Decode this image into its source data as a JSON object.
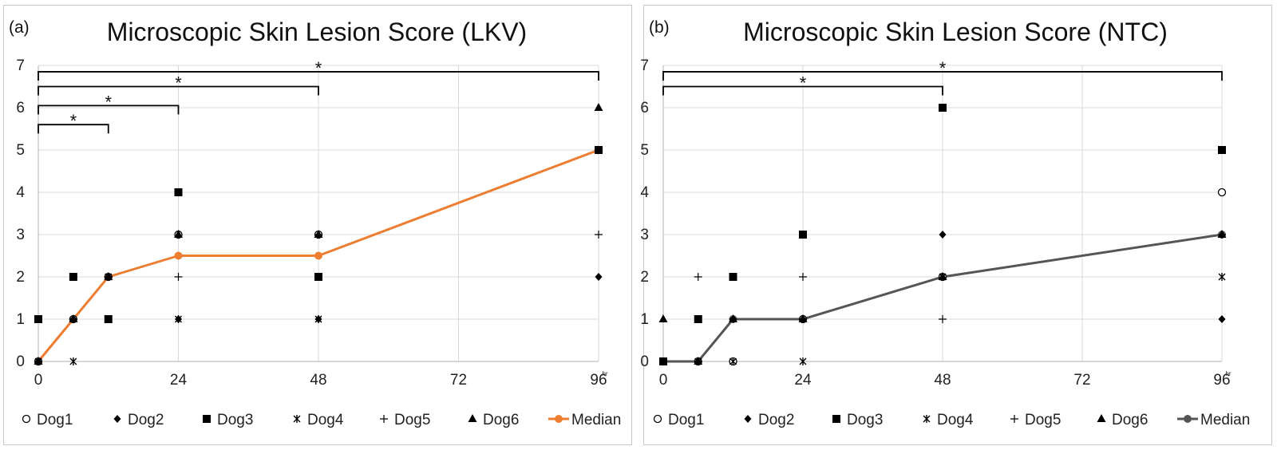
{
  "chart_data": [
    {
      "type": "scatter",
      "panel_label": "(a)",
      "title": "Microscopic Skin Lesion Score (LKV)",
      "x_ticks": [
        0,
        24,
        48,
        72,
        96
      ],
      "x_unit": "hr",
      "y_ticks": [
        0,
        1,
        2,
        3,
        4,
        5,
        6,
        7
      ],
      "xlim": [
        0,
        96
      ],
      "ylim": [
        0,
        7
      ],
      "grid": true,
      "legend_position": "bottom",
      "median_color": "#ED7D31",
      "series": [
        {
          "name": "Dog1",
          "marker": "circle-open",
          "points": [
            [
              0,
              0
            ],
            [
              6,
              1
            ],
            [
              12,
              2
            ],
            [
              24,
              3
            ],
            [
              48,
              3
            ],
            [
              96,
              5
            ]
          ]
        },
        {
          "name": "Dog2",
          "marker": "diamond",
          "points": [
            [
              0,
              0
            ],
            [
              6,
              1
            ],
            [
              12,
              2
            ],
            [
              24,
              1
            ],
            [
              48,
              1
            ],
            [
              96,
              2
            ]
          ]
        },
        {
          "name": "Dog3",
          "marker": "square",
          "points": [
            [
              0,
              1
            ],
            [
              6,
              2
            ],
            [
              12,
              1
            ],
            [
              24,
              4
            ],
            [
              48,
              2
            ],
            [
              96,
              5
            ]
          ]
        },
        {
          "name": "Dog4",
          "marker": "star-x",
          "points": [
            [
              0,
              0
            ],
            [
              6,
              0
            ],
            [
              12,
              2
            ],
            [
              24,
              1
            ],
            [
              48,
              1
            ],
            [
              96,
              5
            ]
          ]
        },
        {
          "name": "Dog5",
          "marker": "plus",
          "points": [
            [
              0,
              0
            ],
            [
              6,
              1
            ],
            [
              12,
              2
            ],
            [
              24,
              2
            ],
            [
              48,
              3
            ],
            [
              96,
              3
            ]
          ]
        },
        {
          "name": "Dog6",
          "marker": "triangle",
          "points": [
            [
              0,
              0
            ],
            [
              6,
              1
            ],
            [
              12,
              2
            ],
            [
              24,
              3
            ],
            [
              48,
              3
            ],
            [
              96,
              6
            ]
          ]
        },
        {
          "name": "Median",
          "marker": "line",
          "points": [
            [
              0,
              0
            ],
            [
              6,
              1
            ],
            [
              12,
              2
            ],
            [
              24,
              2.5
            ],
            [
              48,
              2.5
            ],
            [
              96,
              5
            ]
          ]
        }
      ],
      "significance": [
        {
          "from": 0,
          "to": 12,
          "level": 5.6,
          "label": "*"
        },
        {
          "from": 0,
          "to": 24,
          "level": 6.05,
          "label": "*"
        },
        {
          "from": 0,
          "to": 48,
          "level": 6.5,
          "label": "*"
        },
        {
          "from": 0,
          "to": 96,
          "level": 6.85,
          "label": "*"
        }
      ]
    },
    {
      "type": "scatter",
      "panel_label": "(b)",
      "title": "Microscopic Skin Lesion Score (NTC)",
      "x_ticks": [
        0,
        24,
        48,
        72,
        96
      ],
      "x_unit": "hr",
      "y_ticks": [
        0,
        1,
        2,
        3,
        4,
        5,
        6,
        7
      ],
      "xlim": [
        0,
        96
      ],
      "ylim": [
        0,
        7
      ],
      "grid": true,
      "legend_position": "bottom",
      "median_color": "#555555",
      "series": [
        {
          "name": "Dog1",
          "marker": "circle-open",
          "points": [
            [
              0,
              0
            ],
            [
              6,
              0
            ],
            [
              12,
              0
            ],
            [
              24,
              1
            ],
            [
              48,
              2
            ],
            [
              96,
              4
            ]
          ]
        },
        {
          "name": "Dog2",
          "marker": "diamond",
          "points": [
            [
              0,
              0
            ],
            [
              6,
              0
            ],
            [
              12,
              1
            ],
            [
              24,
              1
            ],
            [
              48,
              3
            ],
            [
              96,
              1
            ]
          ]
        },
        {
          "name": "Dog3",
          "marker": "square",
          "points": [
            [
              0,
              0
            ],
            [
              6,
              1
            ],
            [
              12,
              2
            ],
            [
              24,
              3
            ],
            [
              48,
              6
            ],
            [
              96,
              5
            ]
          ]
        },
        {
          "name": "Dog4",
          "marker": "star-x",
          "points": [
            [
              0,
              0
            ],
            [
              6,
              0
            ],
            [
              12,
              0
            ],
            [
              24,
              0
            ],
            [
              48,
              2
            ],
            [
              96,
              2
            ]
          ]
        },
        {
          "name": "Dog5",
          "marker": "plus",
          "points": [
            [
              0,
              0
            ],
            [
              6,
              2
            ],
            [
              12,
              1
            ],
            [
              24,
              2
            ],
            [
              48,
              1
            ],
            [
              96,
              3
            ]
          ]
        },
        {
          "name": "Dog6",
          "marker": "triangle",
          "points": [
            [
              0,
              1
            ],
            [
              6,
              0
            ],
            [
              12,
              1
            ],
            [
              24,
              1
            ],
            [
              48,
              2
            ],
            [
              96,
              3
            ]
          ]
        },
        {
          "name": "Median",
          "marker": "line",
          "points": [
            [
              0,
              0
            ],
            [
              6,
              0
            ],
            [
              12,
              1
            ],
            [
              24,
              1
            ],
            [
              48,
              2
            ],
            [
              96,
              3
            ]
          ]
        }
      ],
      "significance": [
        {
          "from": 0,
          "to": 48,
          "level": 6.5,
          "label": "*"
        },
        {
          "from": 0,
          "to": 96,
          "level": 6.85,
          "label": "*"
        }
      ]
    }
  ]
}
